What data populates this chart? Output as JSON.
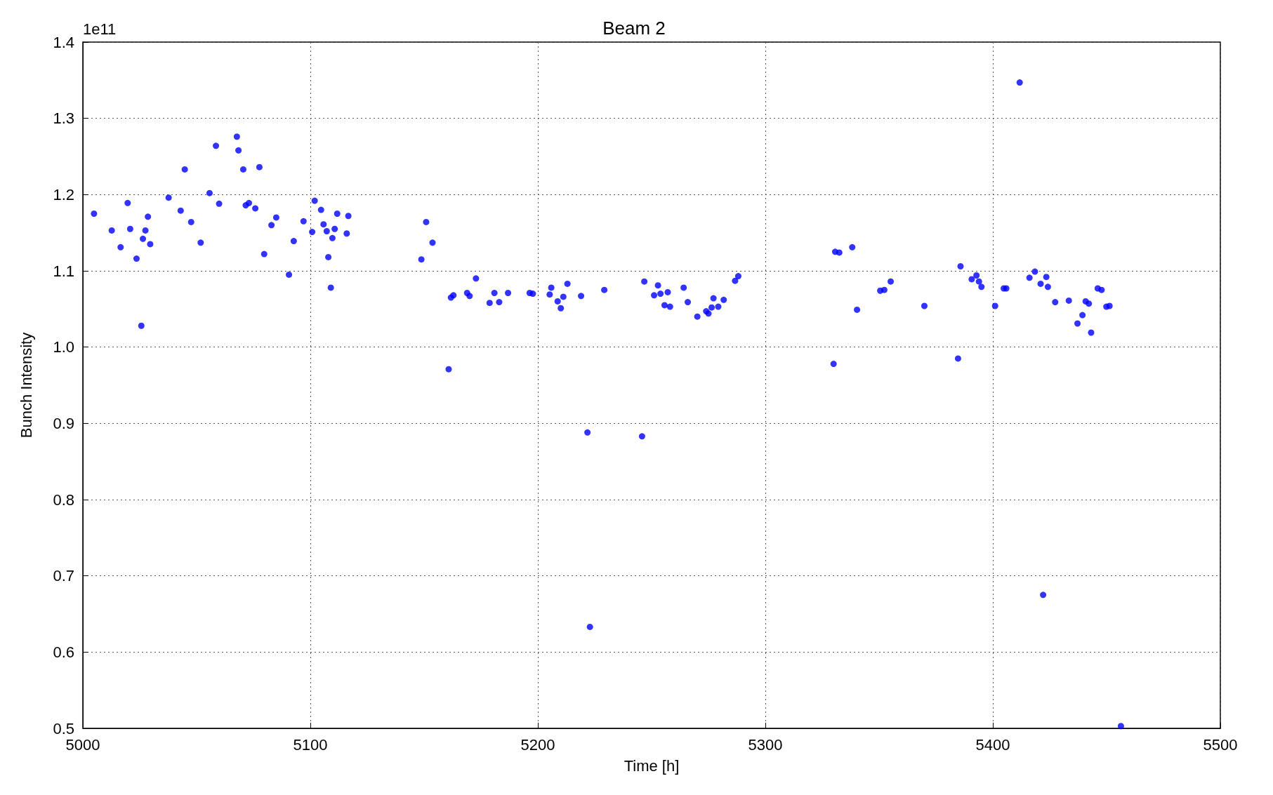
{
  "chart_data": {
    "type": "scatter",
    "title": "Beam 2",
    "xlabel": "Time [h]",
    "ylabel": "Bunch Intensity",
    "annotations": [
      "1e11"
    ],
    "xlim": [
      5000,
      5500
    ],
    "xticks": [
      5000,
      5100,
      5200,
      5300,
      5400,
      5500
    ],
    "ylim": [
      0.5,
      1.4
    ],
    "yticks": [
      0.5,
      0.6,
      0.7,
      0.8,
      0.9,
      {
        "value": 1,
        "label": "1.0"
      },
      1.1,
      1.2,
      1.3,
      1.4
    ],
    "grid": true,
    "marker": "circle",
    "series": [
      {
        "color": "#0000ff",
        "x": [
          5004.9,
          5012.7,
          5016.6,
          5019.7,
          5020.8,
          5023.6,
          5025.7,
          5026.4,
          5027.5,
          5028.6,
          5029.6,
          5037.7,
          5043.0,
          5044.8,
          5047.6,
          5051.8,
          5055.7,
          5058.5,
          5059.9,
          5067.7,
          5068.4,
          5070.5,
          5071.6,
          5073.0,
          5075.8,
          5077.6,
          5079.7,
          5082.9,
          5085.0,
          5090.6,
          5092.7,
          5097.0,
          5100.8,
          5101.9,
          5104.7,
          5105.8,
          5107.2,
          5107.9,
          5109.0,
          5109.7,
          5110.7,
          5111.8,
          5116.0,
          5116.7,
          5148.8,
          5150.9,
          5153.7,
          5160.8,
          5161.8,
          5162.9,
          5168.9,
          5170.0,
          5172.8,
          5178.8,
          5180.9,
          5183.0,
          5186.9,
          5196.4,
          5197.8,
          5205.2,
          5205.9,
          5208.7,
          5210.1,
          5211.2,
          5213.0,
          5219.0,
          5221.8,
          5222.9,
          5229.2,
          5245.8,
          5246.8,
          5251.1,
          5252.8,
          5253.9,
          5255.7,
          5257.1,
          5258.1,
          5264.1,
          5265.9,
          5270.1,
          5274.0,
          5275.0,
          5276.4,
          5277.2,
          5279.3,
          5281.7,
          5286.7,
          5288.1,
          5330.0,
          5330.7,
          5332.5,
          5338.2,
          5340.3,
          5350.5,
          5352.3,
          5355.1,
          5369.9,
          5384.7,
          5385.8,
          5390.7,
          5392.8,
          5393.9,
          5395.0,
          5401.0,
          5404.8,
          5405.9,
          5411.8,
          5416.1,
          5418.5,
          5421.0,
          5422.1,
          5423.5,
          5424.2,
          5427.4,
          5433.4,
          5437.2,
          5439.4,
          5440.8,
          5442.2,
          5443.2,
          5446.1,
          5447.8,
          5449.9,
          5451.3,
          5456.3
        ],
        "values": [
          1.175,
          1.153,
          1.131,
          1.189,
          1.155,
          1.116,
          1.028,
          1.142,
          1.153,
          1.171,
          1.135,
          1.196,
          1.179,
          1.233,
          1.164,
          1.137,
          1.202,
          1.264,
          1.188,
          1.276,
          1.258,
          1.233,
          1.186,
          1.189,
          1.182,
          1.236,
          1.122,
          1.16,
          1.17,
          1.095,
          1.139,
          1.165,
          1.151,
          1.192,
          1.18,
          1.161,
          1.152,
          1.118,
          1.078,
          1.143,
          1.155,
          1.175,
          1.149,
          1.172,
          1.115,
          1.164,
          1.137,
          0.971,
          1.065,
          1.068,
          1.071,
          1.067,
          1.09,
          1.058,
          1.071,
          1.059,
          1.071,
          1.071,
          1.07,
          1.069,
          1.078,
          1.06,
          1.051,
          1.066,
          1.083,
          1.067,
          0.888,
          0.633,
          1.075,
          0.883,
          1.086,
          1.068,
          1.081,
          1.07,
          1.055,
          1.072,
          1.053,
          1.078,
          1.059,
          1.04,
          1.047,
          1.044,
          1.052,
          1.064,
          1.053,
          1.062,
          1.087,
          1.093,
          0.978,
          1.125,
          1.124,
          1.131,
          1.049,
          1.074,
          1.075,
          1.086,
          1.054,
          0.985,
          1.106,
          1.089,
          1.094,
          1.086,
          1.079,
          1.054,
          1.077,
          1.077,
          1.347,
          1.091,
          1.099,
          1.083,
          0.675,
          1.092,
          1.079,
          1.059,
          1.061,
          1.031,
          1.042,
          1.06,
          1.057,
          1.019,
          1.077,
          1.075,
          1.053,
          1.054,
          0.503
        ]
      }
    ]
  }
}
